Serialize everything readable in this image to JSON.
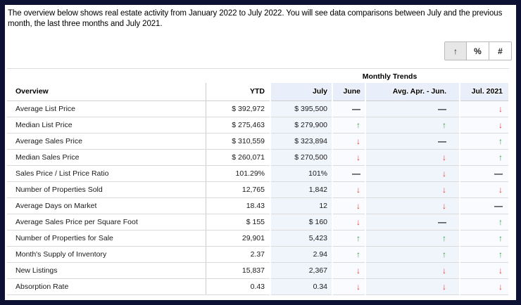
{
  "page": {
    "intro": "The overview below shows real estate activity from January 2022 to July 2022. You will see data comparisons between July and the previous month, the last three months and July 2021."
  },
  "toolbar": {
    "buttons": [
      {
        "label": "↑",
        "name": "trend-arrows-view",
        "active": true
      },
      {
        "label": "%",
        "name": "percent-view",
        "active": false
      },
      {
        "label": "#",
        "name": "number-view",
        "active": false
      }
    ]
  },
  "table": {
    "group_header": "Monthly Trends",
    "columns": [
      "Overview",
      "YTD",
      "July",
      "June",
      "Avg. Apr. - Jun.",
      "Jul. 2021"
    ],
    "rows": [
      {
        "label": "Average List Price",
        "ytd": "$ 392,972",
        "july": "$ 395,500",
        "june": "flat",
        "avg": "flat",
        "jul2021": "down"
      },
      {
        "label": "Median List Price",
        "ytd": "$ 275,463",
        "july": "$ 279,900",
        "june": "up",
        "avg": "up",
        "jul2021": "down"
      },
      {
        "label": "Average Sales Price",
        "ytd": "$ 310,559",
        "july": "$ 323,894",
        "june": "down",
        "avg": "flat",
        "jul2021": "up"
      },
      {
        "label": "Median Sales Price",
        "ytd": "$ 260,071",
        "july": "$ 270,500",
        "june": "down",
        "avg": "down",
        "jul2021": "up"
      },
      {
        "label": "Sales Price / List Price Ratio",
        "ytd": "101.29%",
        "july": "101%",
        "june": "flat",
        "avg": "down",
        "jul2021": "flat"
      },
      {
        "label": "Number of Properties Sold",
        "ytd": "12,765",
        "july": "1,842",
        "june": "down",
        "avg": "down",
        "jul2021": "down"
      },
      {
        "label": "Average Days on Market",
        "ytd": "18.43",
        "july": "12",
        "june": "down",
        "avg": "down",
        "jul2021": "flat"
      },
      {
        "label": "Average Sales Price per Square Foot",
        "ytd": "$ 155",
        "july": "$ 160",
        "june": "down",
        "avg": "flat",
        "jul2021": "up"
      },
      {
        "label": "Number of Properties for Sale",
        "ytd": "29,901",
        "july": "5,423",
        "june": "up",
        "avg": "up",
        "jul2021": "up"
      },
      {
        "label": "Month's Supply of Inventory",
        "ytd": "2.37",
        "july": "2.94",
        "june": "up",
        "avg": "up",
        "jul2021": "up"
      },
      {
        "label": "New Listings",
        "ytd": "15,837",
        "july": "2,367",
        "june": "down",
        "avg": "down",
        "jul2021": "down"
      },
      {
        "label": "Absorption Rate",
        "ytd": "0.43",
        "july": "0.34",
        "june": "down",
        "avg": "down",
        "jul2021": "down"
      }
    ]
  },
  "glyphs": {
    "up": "↑",
    "down": "↓",
    "flat": "—"
  },
  "colors": {
    "up": "#2f9e44",
    "down": "#e03c31",
    "flat": "#222222",
    "frame_border": "#0d1134",
    "column_tint": "#f0f4fb",
    "header_tint": "#e8eefa"
  }
}
